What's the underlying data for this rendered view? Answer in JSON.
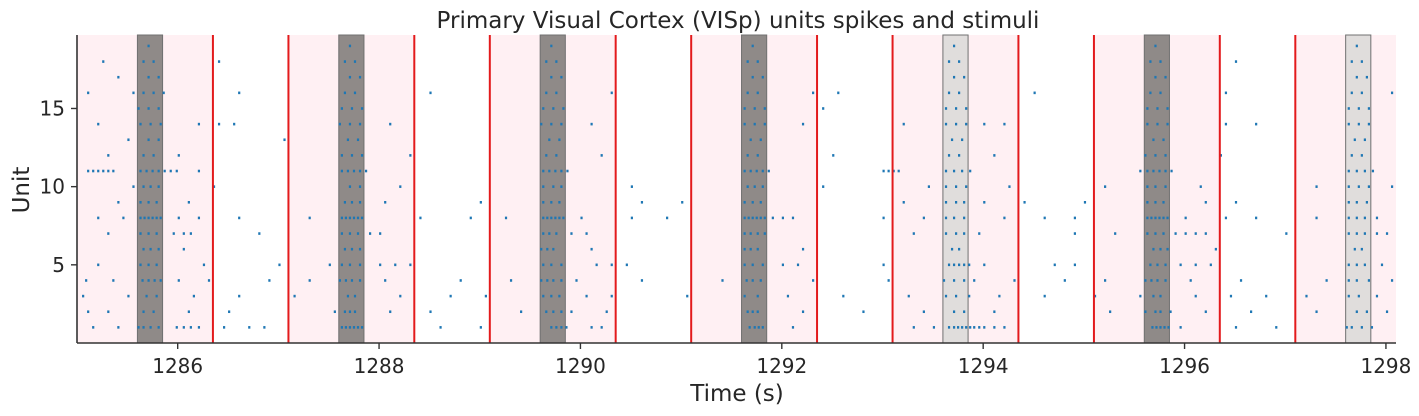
{
  "chart_data": {
    "type": "raster",
    "title": "Primary Visual Cortex (VISp) units spikes and stimuli",
    "xlabel": "Time (s)",
    "ylabel": "Unit",
    "xlim": [
      1285.0,
      1298.1
    ],
    "ylim": [
      0,
      19.7
    ],
    "xticks": [
      1286,
      1288,
      1290,
      1292,
      1294,
      1296,
      1298
    ],
    "yticks": [
      5,
      10,
      15
    ],
    "grid": false,
    "colors": {
      "spike": "#1f77b4",
      "trial_band": "#fff0f3",
      "trial_line": "#e31a1c",
      "stim_dark": "#8f8a88",
      "stim_light": "#e0dddc",
      "stim_edge": "#707070",
      "axis": "#333333"
    },
    "trials": [
      {
        "start": 1285.0,
        "end": 1286.35
      },
      {
        "start": 1287.1,
        "end": 1288.35
      },
      {
        "start": 1289.1,
        "end": 1290.35
      },
      {
        "start": 1291.1,
        "end": 1292.35
      },
      {
        "start": 1293.1,
        "end": 1294.35
      },
      {
        "start": 1295.1,
        "end": 1296.35
      },
      {
        "start": 1297.1,
        "end": 1298.1
      }
    ],
    "trial_lines": [
      1286.35,
      1287.1,
      1288.35,
      1289.1,
      1290.35,
      1291.1,
      1292.35,
      1293.1,
      1294.35,
      1295.1,
      1296.35,
      1297.1
    ],
    "stimuli": [
      {
        "start": 1285.6,
        "end": 1285.85,
        "shade": "dark"
      },
      {
        "start": 1287.6,
        "end": 1287.85,
        "shade": "dark"
      },
      {
        "start": 1289.6,
        "end": 1289.85,
        "shade": "dark"
      },
      {
        "start": 1291.6,
        "end": 1291.85,
        "shade": "dark"
      },
      {
        "start": 1293.6,
        "end": 1293.85,
        "shade": "light"
      },
      {
        "start": 1295.6,
        "end": 1295.85,
        "shade": "dark"
      },
      {
        "start": 1297.6,
        "end": 1297.85,
        "shade": "light"
      }
    ],
    "units": [
      {
        "unit": 1,
        "spikes": [
          1285.15,
          1285.4,
          1285.6,
          1285.65,
          1285.72,
          1285.8,
          1285.98,
          1286.05,
          1286.12,
          1286.2,
          1286.45,
          1286.7,
          1286.85,
          1287.62,
          1287.66,
          1287.7,
          1287.74,
          1287.78,
          1287.82,
          1288.6,
          1289.0,
          1289.7,
          1289.75,
          1289.8,
          1289.85,
          1290.1,
          1290.2,
          1291.67,
          1291.72,
          1291.76,
          1291.8,
          1292.1,
          1293.3,
          1293.5,
          1293.65,
          1293.7,
          1293.74,
          1293.78,
          1293.82,
          1293.86,
          1293.9,
          1293.95,
          1294.0,
          1294.1,
          1294.2,
          1295.67,
          1295.71,
          1295.75,
          1295.79,
          1295.83,
          1295.95,
          1296.5,
          1296.9,
          1297.6,
          1297.65,
          1297.75,
          1297.85
        ]
      },
      {
        "unit": 2,
        "spikes": [
          1285.1,
          1285.3,
          1285.65,
          1285.75,
          1286.1,
          1286.5,
          1287.55,
          1287.65,
          1287.7,
          1287.75,
          1288.1,
          1288.5,
          1289.4,
          1289.65,
          1289.72,
          1289.8,
          1289.9,
          1290.25,
          1291.65,
          1291.7,
          1291.75,
          1292.2,
          1292.8,
          1293.4,
          1293.7,
          1293.8,
          1294.1,
          1295.25,
          1295.6,
          1295.7,
          1295.75,
          1295.85,
          1296.2,
          1296.65,
          1297.3,
          1297.7,
          1297.8,
          1298.0
        ]
      },
      {
        "unit": 3,
        "spikes": [
          1285.05,
          1285.5,
          1285.68,
          1285.78,
          1286.15,
          1286.6,
          1287.15,
          1287.68,
          1287.75,
          1288.2,
          1288.7,
          1289.05,
          1289.62,
          1289.7,
          1289.78,
          1290.05,
          1290.3,
          1291.05,
          1291.62,
          1291.75,
          1292.05,
          1292.6,
          1293.25,
          1293.62,
          1293.72,
          1293.85,
          1294.15,
          1294.6,
          1295.1,
          1295.55,
          1295.68,
          1295.75,
          1296.1,
          1296.45,
          1296.8,
          1297.2,
          1297.62,
          1297.72,
          1297.9
        ]
      },
      {
        "unit": 4,
        "spikes": [
          1285.08,
          1285.35,
          1285.64,
          1285.7,
          1285.76,
          1285.82,
          1286.0,
          1286.3,
          1286.9,
          1287.3,
          1287.6,
          1287.66,
          1287.72,
          1287.8,
          1288.05,
          1288.8,
          1289.3,
          1289.6,
          1289.66,
          1289.72,
          1289.8,
          1289.95,
          1290.6,
          1291.4,
          1291.64,
          1291.7,
          1291.78,
          1292.3,
          1293.05,
          1293.6,
          1293.7,
          1293.8,
          1293.9,
          1294.3,
          1294.8,
          1295.2,
          1295.6,
          1295.66,
          1295.72,
          1295.8,
          1296.05,
          1296.55,
          1297.4,
          1297.62,
          1297.7,
          1297.82,
          1298.05
        ]
      },
      {
        "unit": 5,
        "spikes": [
          1285.2,
          1285.62,
          1285.7,
          1285.78,
          1286.25,
          1287.0,
          1287.5,
          1287.62,
          1287.7,
          1287.8,
          1288.0,
          1288.15,
          1288.3,
          1289.62,
          1289.7,
          1289.8,
          1290.15,
          1290.3,
          1290.45,
          1291.62,
          1291.7,
          1291.8,
          1292.0,
          1292.15,
          1293.0,
          1293.65,
          1293.7,
          1293.75,
          1293.8,
          1293.85,
          1294.0,
          1294.7,
          1294.9,
          1295.65,
          1295.72,
          1295.8,
          1295.95,
          1296.1,
          1296.25,
          1297.62,
          1297.7,
          1297.78,
          1297.95
        ]
      },
      {
        "unit": 6,
        "spikes": [
          1285.65,
          1285.72,
          1285.8,
          1286.05,
          1287.65,
          1287.72,
          1287.8,
          1289.6,
          1289.66,
          1289.72,
          1290.1,
          1291.62,
          1291.68,
          1291.75,
          1292.2,
          1293.68,
          1293.75,
          1295.68,
          1295.75,
          1295.82,
          1296.3,
          1297.68,
          1297.75
        ]
      },
      {
        "unit": 7,
        "spikes": [
          1285.3,
          1285.62,
          1285.7,
          1285.78,
          1285.95,
          1286.05,
          1286.12,
          1286.8,
          1287.62,
          1287.7,
          1287.78,
          1287.9,
          1288.0,
          1289.62,
          1289.68,
          1289.75,
          1289.9,
          1290.05,
          1291.62,
          1291.68,
          1291.75,
          1291.82,
          1293.3,
          1293.62,
          1293.72,
          1293.8,
          1293.95,
          1294.9,
          1295.3,
          1295.62,
          1295.7,
          1295.78,
          1295.9,
          1296.0,
          1296.1,
          1296.2,
          1297.0,
          1297.62,
          1297.7,
          1297.78,
          1297.9,
          1298.0
        ]
      },
      {
        "unit": 8,
        "spikes": [
          1285.2,
          1285.45,
          1285.62,
          1285.66,
          1285.7,
          1285.74,
          1285.78,
          1285.82,
          1286.0,
          1286.2,
          1286.6,
          1287.3,
          1287.62,
          1287.66,
          1287.7,
          1287.74,
          1287.78,
          1287.82,
          1288.4,
          1288.9,
          1289.25,
          1289.62,
          1289.66,
          1289.7,
          1289.74,
          1289.78,
          1289.82,
          1290.0,
          1290.5,
          1290.85,
          1291.62,
          1291.66,
          1291.7,
          1291.74,
          1291.78,
          1291.82,
          1291.9,
          1292.0,
          1292.1,
          1293.0,
          1293.4,
          1293.62,
          1293.7,
          1293.8,
          1294.2,
          1294.6,
          1294.9,
          1295.62,
          1295.66,
          1295.7,
          1295.74,
          1295.78,
          1295.82,
          1296.0,
          1296.4,
          1296.7,
          1297.3,
          1297.62,
          1297.7,
          1297.78,
          1297.9
        ]
      },
      {
        "unit": 9,
        "spikes": [
          1285.4,
          1285.62,
          1285.7,
          1285.78,
          1286.1,
          1287.65,
          1287.72,
          1287.8,
          1288.05,
          1289.0,
          1289.62,
          1289.7,
          1289.78,
          1290.6,
          1291.0,
          1291.62,
          1291.7,
          1291.78,
          1293.2,
          1293.62,
          1293.72,
          1293.8,
          1294.0,
          1294.4,
          1295.0,
          1295.62,
          1295.7,
          1295.78,
          1296.2,
          1296.5,
          1297.62,
          1297.7,
          1297.8
        ]
      },
      {
        "unit": 10,
        "spikes": [
          1285.55,
          1285.65,
          1285.72,
          1285.8,
          1286.35,
          1287.7,
          1287.8,
          1288.2,
          1289.62,
          1289.72,
          1289.8,
          1290.5,
          1291.65,
          1291.72,
          1291.8,
          1292.4,
          1293.45,
          1293.62,
          1293.72,
          1293.82,
          1294.25,
          1295.2,
          1295.62,
          1295.7,
          1295.8,
          1296.15,
          1297.3,
          1297.62,
          1297.72,
          1297.82,
          1298.05
        ]
      },
      {
        "unit": 11,
        "spikes": [
          1285.1,
          1285.15,
          1285.2,
          1285.25,
          1285.3,
          1285.35,
          1285.62,
          1285.68,
          1285.74,
          1285.8,
          1285.86,
          1285.92,
          1285.98,
          1286.2,
          1287.62,
          1287.68,
          1287.74,
          1287.8,
          1287.86,
          1289.62,
          1289.68,
          1289.74,
          1289.8,
          1289.86,
          1291.62,
          1291.68,
          1291.74,
          1291.8,
          1291.86,
          1293.0,
          1293.05,
          1293.1,
          1293.15,
          1293.62,
          1293.7,
          1293.78,
          1293.86,
          1295.55,
          1295.62,
          1295.68,
          1295.74,
          1295.8,
          1295.86,
          1297.62,
          1297.7,
          1297.78,
          1297.86
        ]
      },
      {
        "unit": 12,
        "spikes": [
          1285.3,
          1285.65,
          1285.75,
          1286.0,
          1287.62,
          1287.72,
          1287.82,
          1288.3,
          1289.65,
          1289.75,
          1290.2,
          1291.65,
          1291.75,
          1292.5,
          1293.65,
          1293.75,
          1294.1,
          1295.6,
          1295.7,
          1295.8,
          1296.35,
          1297.65,
          1297.75
        ]
      },
      {
        "unit": 13,
        "spikes": [
          1285.5,
          1285.7,
          1285.8,
          1287.05,
          1287.68,
          1287.78,
          1289.68,
          1289.78,
          1291.68,
          1291.78,
          1293.68,
          1293.78,
          1295.68,
          1295.78,
          1297.68,
          1297.78
        ]
      },
      {
        "unit": 14,
        "spikes": [
          1285.2,
          1285.62,
          1285.72,
          1285.82,
          1286.2,
          1286.4,
          1286.55,
          1287.6,
          1287.7,
          1287.8,
          1288.1,
          1289.6,
          1289.7,
          1289.8,
          1290.1,
          1291.62,
          1291.72,
          1291.82,
          1292.2,
          1293.2,
          1293.62,
          1293.72,
          1293.82,
          1294.0,
          1294.2,
          1295.62,
          1295.72,
          1295.82,
          1296.4,
          1296.7,
          1297.62,
          1297.72,
          1297.82
        ]
      },
      {
        "unit": 15,
        "spikes": [
          1285.6,
          1285.7,
          1285.8,
          1287.62,
          1287.72,
          1287.82,
          1289.62,
          1289.72,
          1289.82,
          1291.62,
          1291.72,
          1291.82,
          1292.4,
          1293.62,
          1293.72,
          1293.82,
          1295.62,
          1295.72,
          1295.82,
          1297.62,
          1297.72,
          1297.82
        ]
      },
      {
        "unit": 16,
        "spikes": [
          1285.1,
          1285.55,
          1285.65,
          1285.75,
          1285.85,
          1286.6,
          1287.65,
          1287.75,
          1288.5,
          1289.65,
          1289.75,
          1290.3,
          1291.65,
          1291.75,
          1292.3,
          1292.55,
          1293.65,
          1293.75,
          1294.5,
          1295.65,
          1295.75,
          1296.4,
          1297.65,
          1297.75,
          1298.05
        ]
      },
      {
        "unit": 17,
        "spikes": [
          1285.4,
          1285.7,
          1285.8,
          1287.7,
          1287.8,
          1289.7,
          1289.8,
          1291.7,
          1291.8,
          1293.7,
          1293.8,
          1295.7,
          1295.8,
          1297.7,
          1297.8
        ]
      },
      {
        "unit": 18,
        "spikes": [
          1285.25,
          1285.65,
          1285.75,
          1286.4,
          1287.65,
          1287.75,
          1289.65,
          1289.75,
          1291.65,
          1291.75,
          1293.65,
          1293.75,
          1295.65,
          1295.75,
          1296.5,
          1297.65,
          1297.75
        ]
      },
      {
        "unit": 19,
        "spikes": [
          1285.7,
          1287.7,
          1289.7,
          1291.7,
          1293.7,
          1295.7,
          1297.7
        ]
      }
    ]
  }
}
